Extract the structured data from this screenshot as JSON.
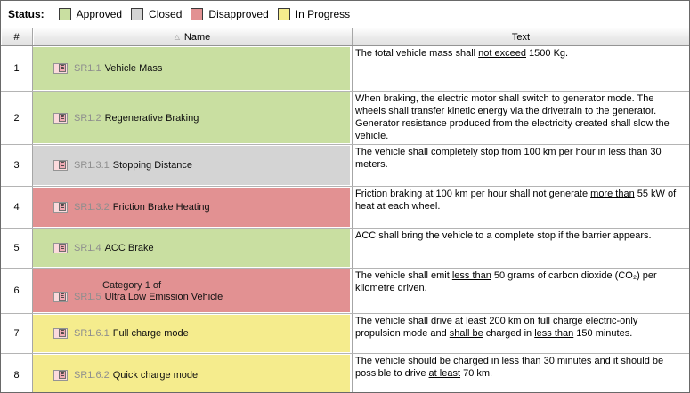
{
  "legend": {
    "title": "Status:",
    "items": [
      {
        "label": "Approved",
        "status": "approved"
      },
      {
        "label": "Closed",
        "status": "closed"
      },
      {
        "label": "Disapproved",
        "status": "disapproved"
      },
      {
        "label": "In Progress",
        "status": "inprogress"
      }
    ]
  },
  "status_colors": {
    "approved": "#c9dfa1",
    "closed": "#d4d4d4",
    "disapproved": "#e29192",
    "inprogress": "#f5ec8d"
  },
  "table": {
    "columns": {
      "num": "#",
      "name": "Name",
      "text": "Text"
    },
    "sort_icon": "△"
  },
  "req_icon_letter": "E",
  "rows": [
    {
      "num": "1",
      "status": "approved",
      "prefix": "SR1.1",
      "label": "Vehicle Mass",
      "text": [
        "The total vehicle mass shall ",
        {
          "u": "not exceed"
        },
        " 1500 Kg."
      ]
    },
    {
      "num": "2",
      "status": "approved",
      "prefix": "SR1.2",
      "label": "Regenerative Braking",
      "text": [
        "When braking, the electric motor shall switch to generator mode. The wheels shall transfer kinetic energy via the drivetrain to the generator. Generator resistance produced from the electricity created shall slow the vehicle."
      ]
    },
    {
      "num": "3",
      "status": "closed",
      "prefix": "SR1.3.1",
      "label": "Stopping Distance",
      "text": [
        "The vehicle shall completely stop from 100 km per hour in ",
        {
          "u": "less than"
        },
        " 30 meters."
      ]
    },
    {
      "num": "4",
      "status": "disapproved",
      "prefix": "SR1.3.2",
      "label": "Friction Brake Heating",
      "text": [
        "Friction braking at 100 km per hour shall not generate ",
        {
          "u": "more than"
        },
        " 55 kW of heat at each wheel."
      ]
    },
    {
      "num": "5",
      "status": "approved",
      "prefix": "SR1.4",
      "label": "ACC Brake",
      "text": [
        "ACC shall bring the vehicle to a complete stop if the barrier appears."
      ]
    },
    {
      "num": "6",
      "status": "disapproved",
      "category": "Category 1 of",
      "prefix": "SR1.5",
      "label": "Ultra Low Emission Vehicle",
      "text": [
        "The vehicle shall emit ",
        {
          "u": "less than"
        },
        " 50 grams of carbon dioxide (CO₂) per kilometre driven."
      ]
    },
    {
      "num": "7",
      "status": "inprogress",
      "prefix": "SR1.6.1",
      "label": "Full charge mode",
      "text": [
        "The vehicle shall drive ",
        {
          "u": "at least"
        },
        " 200 km on full charge electric-only propulsion mode and ",
        {
          "u": "shall be"
        },
        " charged in ",
        {
          "u": "less than"
        },
        " 150 minutes."
      ]
    },
    {
      "num": "8",
      "status": "inprogress",
      "prefix": "SR1.6.2",
      "label": "Quick charge mode",
      "text": [
        "The vehicle should be charged in ",
        {
          "u": "less than"
        },
        " 30 minutes and it should be possible to drive ",
        {
          "u": "at least"
        },
        " 70 km."
      ]
    }
  ]
}
